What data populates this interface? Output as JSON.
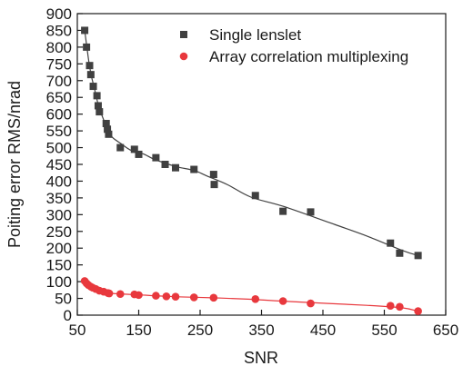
{
  "chart_data": {
    "type": "scatter",
    "title": "",
    "xlabel": "SNR",
    "ylabel": "Poiting error RMS/nrad",
    "xlim": [
      50,
      650
    ],
    "ylim": [
      0,
      900
    ],
    "x_ticks": [
      50,
      150,
      250,
      350,
      450,
      550,
      650
    ],
    "y_ticks": [
      0,
      50,
      100,
      150,
      200,
      250,
      300,
      350,
      400,
      450,
      500,
      550,
      600,
      650,
      700,
      750,
      800,
      850,
      900
    ],
    "grid": false,
    "legend_position": "top-right",
    "series": [
      {
        "name": "Single lenslet",
        "marker": "square",
        "color": "#404040",
        "fit_line": true,
        "x": [
          62,
          65,
          70,
          72,
          76,
          82,
          84,
          86,
          97,
          99,
          101,
          120,
          143,
          150,
          178,
          193,
          210,
          240,
          272,
          273,
          340,
          385,
          430,
          560,
          575,
          605
        ],
        "y": [
          850,
          800,
          745,
          718,
          683,
          655,
          625,
          607,
          572,
          555,
          540,
          500,
          495,
          480,
          470,
          450,
          440,
          435,
          420,
          390,
          357,
          310,
          308,
          215,
          185,
          178
        ]
      },
      {
        "name": "Array correlation multiplexing",
        "marker": "circle",
        "color": "#e8383d",
        "fit_line": true,
        "x": [
          62,
          65,
          68,
          72,
          75,
          80,
          86,
          93,
          100,
          102,
          120,
          143,
          150,
          178,
          195,
          210,
          240,
          272,
          340,
          385,
          430,
          560,
          575,
          605
        ],
        "y": [
          102,
          95,
          90,
          85,
          82,
          78,
          73,
          70,
          66,
          65,
          63,
          62,
          60,
          58,
          56,
          55,
          53,
          52,
          48,
          42,
          35,
          28,
          25,
          12
        ]
      }
    ]
  }
}
